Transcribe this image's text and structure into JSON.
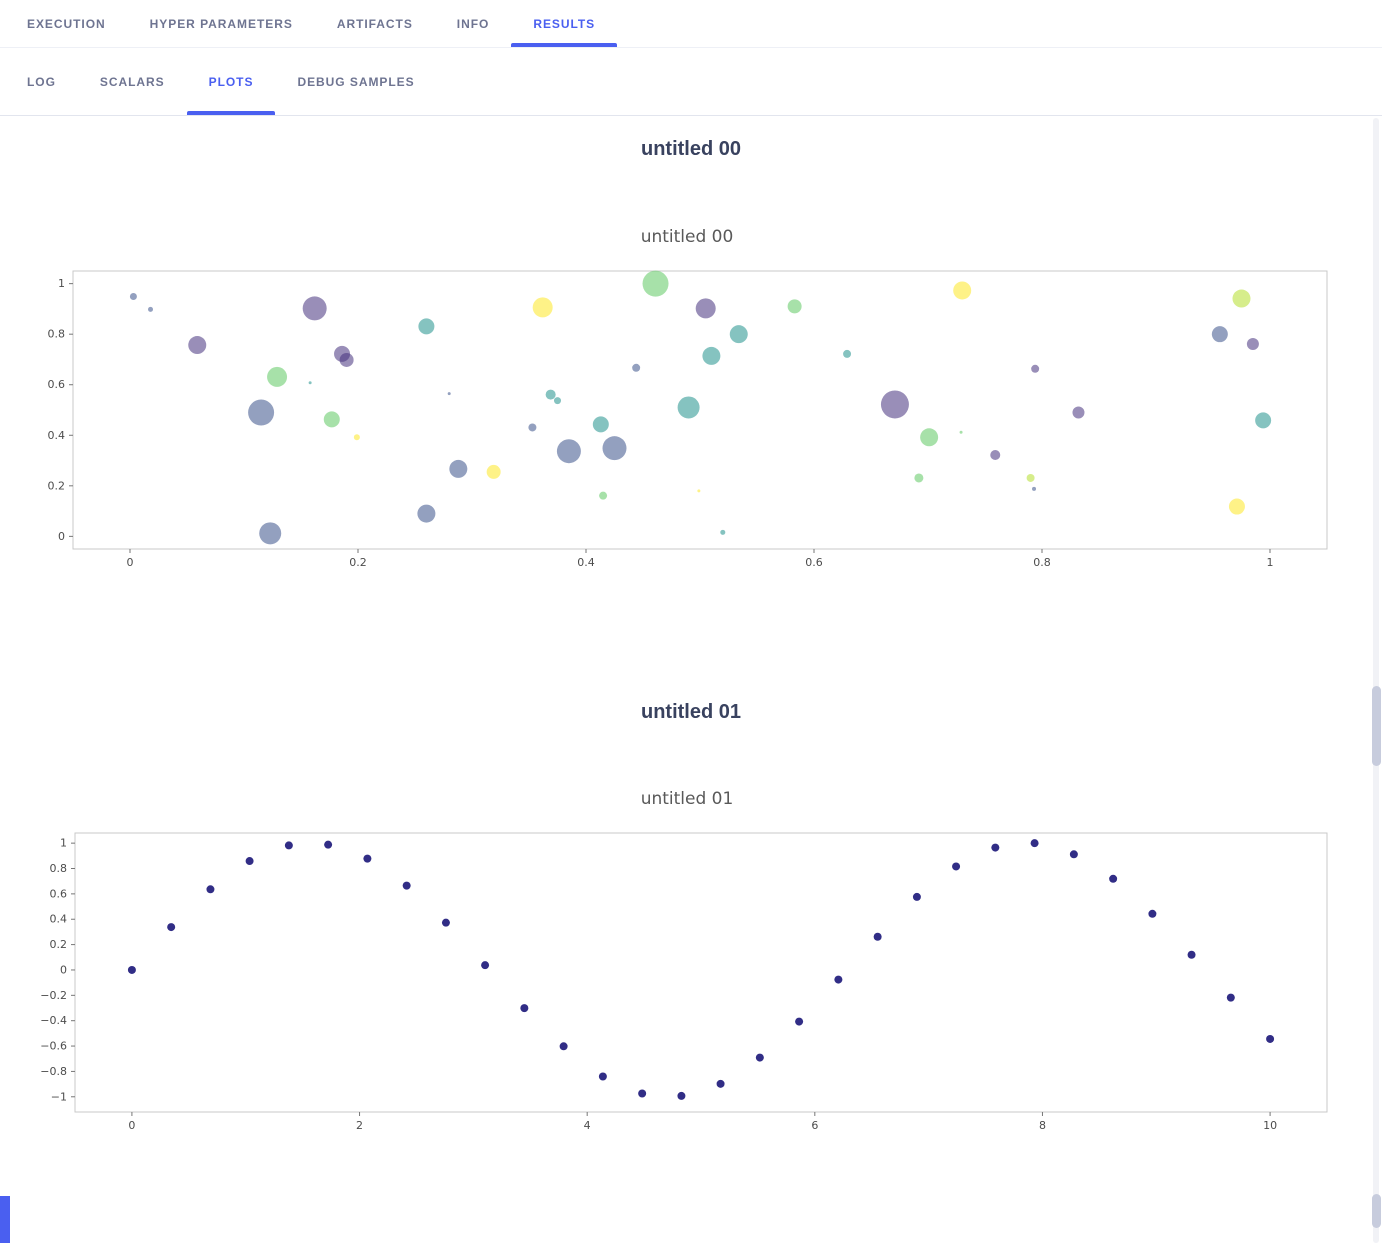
{
  "accent_color": "#4a5ff0",
  "header_tabs": {
    "items": [
      {
        "label": "EXECUTION",
        "active": false
      },
      {
        "label": "HYPER PARAMETERS",
        "active": false
      },
      {
        "label": "ARTIFACTS",
        "active": false
      },
      {
        "label": "INFO",
        "active": false
      },
      {
        "label": "RESULTS",
        "active": true
      }
    ]
  },
  "results_tabs": {
    "items": [
      {
        "label": "LOG",
        "active": false
      },
      {
        "label": "SCALARS",
        "active": false
      },
      {
        "label": "PLOTS",
        "active": true
      },
      {
        "label": "DEBUG SAMPLES",
        "active": false
      }
    ]
  },
  "plots": [
    {
      "header": "untitled 00"
    },
    {
      "header": "untitled 01"
    }
  ],
  "chart_data": [
    {
      "type": "scatter",
      "title": "untitled 00",
      "xlabel": "",
      "ylabel": "",
      "xlim": [
        -0.05,
        1.05
      ],
      "ylim": [
        -0.05,
        1.05
      ],
      "x_ticks": [
        0,
        0.2,
        0.4,
        0.6,
        0.8,
        1
      ],
      "y_ticks": [
        0,
        0.2,
        0.4,
        0.6,
        0.8,
        1
      ],
      "grid": false,
      "legend": false,
      "marker_opacity": 0.55,
      "palette": [
        "#46327e",
        "#3b528b",
        "#21918c",
        "#5ec962",
        "#fde725",
        "#b5de2b"
      ],
      "point_format": "[x, y, radius_px, palette_index]",
      "points": [
        [
          0.003,
          0.949,
          3.5,
          1
        ],
        [
          0.018,
          0.898,
          2.5,
          1
        ],
        [
          0.059,
          0.757,
          9,
          0
        ],
        [
          0.115,
          0.49,
          13,
          1
        ],
        [
          0.123,
          0.012,
          11,
          1
        ],
        [
          0.129,
          0.631,
          10,
          3
        ],
        [
          0.158,
          0.608,
          1.5,
          2
        ],
        [
          0.162,
          0.902,
          12,
          0
        ],
        [
          0.177,
          0.463,
          8,
          3
        ],
        [
          0.186,
          0.722,
          8,
          0
        ],
        [
          0.19,
          0.698,
          7,
          0
        ],
        [
          0.199,
          0.392,
          3,
          4
        ],
        [
          0.26,
          0.831,
          8,
          2
        ],
        [
          0.28,
          0.565,
          1.5,
          1
        ],
        [
          0.26,
          0.09,
          9,
          1
        ],
        [
          0.288,
          0.267,
          9,
          1
        ],
        [
          0.319,
          0.255,
          7,
          4
        ],
        [
          0.353,
          0.431,
          4,
          1
        ],
        [
          0.362,
          0.906,
          10,
          4
        ],
        [
          0.369,
          0.561,
          5,
          2
        ],
        [
          0.375,
          0.537,
          3.5,
          2
        ],
        [
          0.385,
          0.337,
          12,
          1
        ],
        [
          0.413,
          0.443,
          8,
          2
        ],
        [
          0.425,
          0.349,
          12,
          1
        ],
        [
          0.415,
          0.161,
          4,
          3
        ],
        [
          0.444,
          0.667,
          4,
          1
        ],
        [
          0.461,
          1.0,
          13,
          3
        ],
        [
          0.49,
          0.51,
          11,
          2
        ],
        [
          0.505,
          0.902,
          10,
          0
        ],
        [
          0.51,
          0.714,
          9,
          2
        ],
        [
          0.499,
          0.18,
          1.5,
          4
        ],
        [
          0.534,
          0.8,
          9,
          2
        ],
        [
          0.52,
          0.016,
          2.5,
          2
        ],
        [
          0.583,
          0.91,
          7,
          3
        ],
        [
          0.629,
          0.722,
          4,
          2
        ],
        [
          0.671,
          0.522,
          14,
          0
        ],
        [
          0.701,
          0.392,
          9,
          3
        ],
        [
          0.692,
          0.231,
          4.5,
          3
        ],
        [
          0.73,
          0.973,
          9,
          4
        ],
        [
          0.729,
          0.412,
          1.5,
          3
        ],
        [
          0.759,
          0.322,
          5,
          0
        ],
        [
          0.794,
          0.663,
          4,
          0
        ],
        [
          0.79,
          0.231,
          4,
          5
        ],
        [
          0.793,
          0.188,
          2,
          1
        ],
        [
          0.832,
          0.49,
          6,
          0
        ],
        [
          0.956,
          0.8,
          8,
          1
        ],
        [
          0.985,
          0.761,
          6,
          0
        ],
        [
          0.975,
          0.941,
          9,
          5
        ],
        [
          0.994,
          0.459,
          8,
          2
        ],
        [
          0.971,
          0.118,
          8,
          4
        ]
      ]
    },
    {
      "type": "scatter",
      "title": "untitled 01",
      "xlabel": "",
      "ylabel": "",
      "xlim": [
        -0.5,
        10.5
      ],
      "ylim": [
        -1.12,
        1.08
      ],
      "x_ticks": [
        0,
        2,
        4,
        6,
        8,
        10
      ],
      "y_ticks": [
        -1,
        -0.8,
        -0.6,
        -0.4,
        -0.2,
        0,
        0.2,
        0.4,
        0.6,
        0.8,
        1
      ],
      "grid": false,
      "legend": false,
      "marker_color": "#262280",
      "marker_radius": 4,
      "x": [
        0,
        0.345,
        0.69,
        1.034,
        1.379,
        1.724,
        2.069,
        2.414,
        2.759,
        3.103,
        3.448,
        3.793,
        4.138,
        4.483,
        4.828,
        5.172,
        5.517,
        5.862,
        6.207,
        6.552,
        6.897,
        7.241,
        7.586,
        7.931,
        8.276,
        8.621,
        8.966,
        9.31,
        9.655,
        10
      ],
      "y": [
        0,
        0.338,
        0.636,
        0.859,
        0.982,
        0.988,
        0.878,
        0.665,
        0.373,
        0.038,
        -0.301,
        -0.602,
        -0.84,
        -0.974,
        -0.993,
        -0.898,
        -0.691,
        -0.407,
        -0.076,
        0.262,
        0.576,
        0.816,
        0.965,
        1.0,
        0.912,
        0.719,
        0.443,
        0.12,
        -0.218,
        -0.544
      ]
    }
  ]
}
